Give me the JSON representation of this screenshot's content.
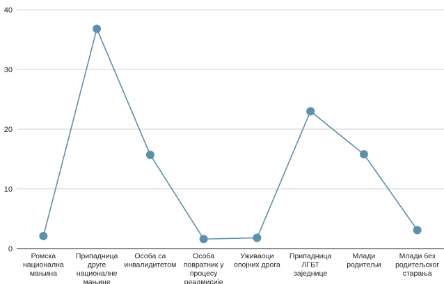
{
  "chart_data": {
    "type": "line",
    "title": "",
    "xlabel": "",
    "ylabel": "",
    "ylim": [
      0,
      40
    ],
    "yticks": [
      0,
      10,
      20,
      30,
      40
    ],
    "grid": true,
    "categories": [
      [
        "Ромска",
        "национална",
        "мањина"
      ],
      [
        "Припадница",
        "друге",
        "националне",
        "мањине"
      ],
      [
        "Особа са",
        "инвалидитетом"
      ],
      [
        "Особа",
        "повратник у",
        "процесу",
        "реадмисије"
      ],
      [
        "Уживаоци",
        "опојних дрога"
      ],
      [
        "Припадница",
        "ЛГБТ",
        "заједнице"
      ],
      [
        "Млади",
        "родитељи"
      ],
      [
        "Млади без",
        "родитељског",
        "старања"
      ]
    ],
    "series": [
      {
        "values": [
          2.1,
          36.8,
          15.7,
          1.6,
          1.8,
          23.0,
          15.8,
          3.1
        ],
        "color": "#5b90ab"
      }
    ]
  }
}
